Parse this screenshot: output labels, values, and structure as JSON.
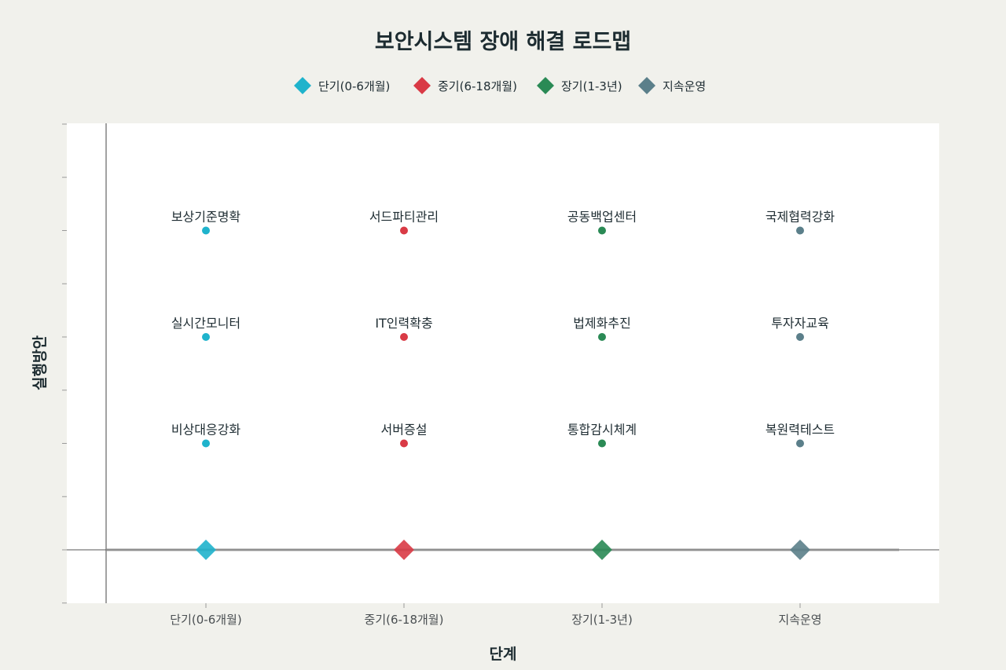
{
  "chart_data": {
    "type": "scatter",
    "title": "보안시스템 장애 해결 로드맵",
    "xlabel": "단계",
    "ylabel": "실행방안",
    "categories": [
      "단기(0-6개월)",
      "중기(6-18개월)",
      "장기(1-3년)",
      "지속운영"
    ],
    "ylim": [
      -0.5,
      4
    ],
    "grid": false,
    "legend_position": "top",
    "colors": [
      "#1fb3cc",
      "#d93a45",
      "#2a8a55",
      "#5b7f8a"
    ],
    "series": [
      {
        "name": "단기(0-6개월)",
        "category": "단기(0-6개월)",
        "points": [
          {
            "y": 1,
            "label": "비상대응강화"
          },
          {
            "y": 2,
            "label": "실시간모니터"
          },
          {
            "y": 3,
            "label": "보상기준명확"
          }
        ]
      },
      {
        "name": "중기(6-18개월)",
        "category": "중기(6-18개월)",
        "points": [
          {
            "y": 1,
            "label": "서버증설"
          },
          {
            "y": 2,
            "label": "IT인력확충"
          },
          {
            "y": 3,
            "label": "서드파티관리"
          }
        ]
      },
      {
        "name": "장기(1-3년)",
        "category": "장기(1-3년)",
        "points": [
          {
            "y": 1,
            "label": "통합감시체계"
          },
          {
            "y": 2,
            "label": "법제화추진"
          },
          {
            "y": 3,
            "label": "공동백업센터"
          }
        ]
      },
      {
        "name": "지속운영",
        "category": "지속운영",
        "points": [
          {
            "y": 1,
            "label": "복원력테스트"
          },
          {
            "y": 2,
            "label": "투자자교육"
          },
          {
            "y": 3,
            "label": "국제협력강화"
          }
        ]
      }
    ],
    "baseline_markers": {
      "y": 0,
      "shape": "diamond"
    }
  }
}
